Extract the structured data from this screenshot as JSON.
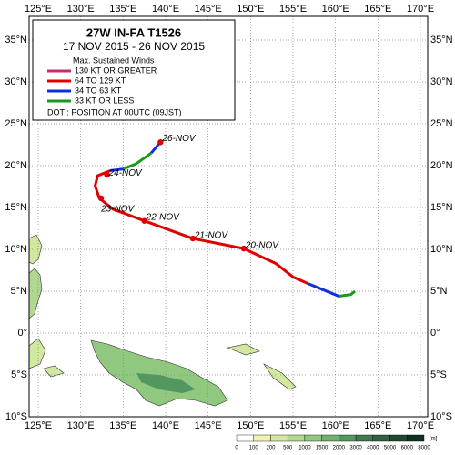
{
  "title": "27W IN-FA T1526",
  "period": "17 NOV 2015 - 26 NOV 2015",
  "legend": {
    "heading": "Max. Sustained Winds",
    "entries": [
      {
        "label": "130 KT OR GREATER",
        "color": "#c0306a"
      },
      {
        "label": "64 TO 129 KT",
        "color": "#e00000"
      },
      {
        "label": "34 TO 63 KT",
        "color": "#1030e0"
      },
      {
        "label": "33 KT OR LESS",
        "color": "#1a9a1a"
      }
    ],
    "dot_note": "DOT : POSITION AT 00UTC (09JST)"
  },
  "lon_ticks": [
    {
      "value": 125,
      "label": "125°E"
    },
    {
      "value": 130,
      "label": "130°E"
    },
    {
      "value": 135,
      "label": "135°E"
    },
    {
      "value": 140,
      "label": "140°E"
    },
    {
      "value": 145,
      "label": "145°E"
    },
    {
      "value": 150,
      "label": "150°E"
    },
    {
      "value": 155,
      "label": "155°E"
    },
    {
      "value": 160,
      "label": "160°E"
    },
    {
      "value": 165,
      "label": "165°E"
    },
    {
      "value": 170,
      "label": "170°E"
    }
  ],
  "lat_ticks": [
    {
      "value": 35,
      "label": "35°N"
    },
    {
      "value": 30,
      "label": "30°N"
    },
    {
      "value": 25,
      "label": "25°N"
    },
    {
      "value": 20,
      "label": "20°N"
    },
    {
      "value": 15,
      "label": "15°N"
    },
    {
      "value": 10,
      "label": "10°N"
    },
    {
      "value": 5,
      "label": "5°N"
    },
    {
      "value": 0,
      "label": "0°"
    },
    {
      "value": -5,
      "label": "5°S"
    },
    {
      "value": -10,
      "label": "10°S"
    }
  ],
  "track": [
    {
      "category": 3,
      "lon": [
        162.3,
        161.8,
        160.4
      ],
      "lat": [
        5.0,
        4.6,
        4.4
      ]
    },
    {
      "category": 2,
      "lon": [
        160.4,
        158,
        156.8
      ],
      "lat": [
        4.4,
        5.4,
        5.9
      ]
    },
    {
      "category": 1,
      "lon": [
        156.8,
        155,
        153,
        149.2,
        143.2,
        137.5,
        133.8,
        132.2,
        131.7,
        132,
        133.5
      ],
      "lat": [
        5.9,
        6.7,
        8.3,
        10.1,
        11.3,
        13.4,
        14.8,
        16.1,
        17.6,
        18.8,
        19.4
      ]
    },
    {
      "category": 2,
      "lon": [
        133.5,
        135
      ],
      "lat": [
        19.4,
        19.6
      ]
    },
    {
      "category": 3,
      "lon": [
        135,
        136.5,
        138.3
      ],
      "lat": [
        19.6,
        20.2,
        21.5
      ]
    },
    {
      "category": 2,
      "lon": [
        138.3,
        139.3
      ],
      "lat": [
        21.5,
        22.7
      ]
    }
  ],
  "positions": [
    {
      "label": "20-NOV",
      "lon": 149.2,
      "lat": 10.1
    },
    {
      "label": "21-NOV",
      "lon": 143.2,
      "lat": 11.3
    },
    {
      "label": "22-NOV",
      "lon": 137.5,
      "lat": 13.4
    },
    {
      "label": "23-NOV",
      "lon": 132.4,
      "lat": 16.1
    },
    {
      "label": "24-NOV",
      "lon": 133.1,
      "lat": 18.9
    },
    {
      "label": "26-NOV",
      "lon": 139.4,
      "lat": 22.8
    }
  ],
  "elevation": {
    "ticks": [
      0,
      100,
      200,
      500,
      1000,
      1500,
      2000,
      3000,
      4000,
      5000,
      6000,
      8000
    ],
    "unit": "[m]"
  }
}
